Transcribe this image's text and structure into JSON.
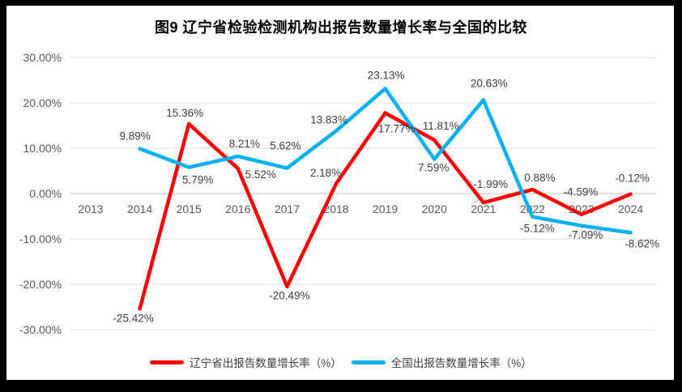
{
  "title": "图9  辽宁省检验检测机构出报告数量增长率与全国的比较",
  "chart_data": {
    "type": "line",
    "categories": [
      "2013",
      "2014",
      "2015",
      "2016",
      "2017",
      "2018",
      "2019",
      "2020",
      "2021",
      "2022",
      "2023",
      "2024"
    ],
    "series": [
      {
        "name": "辽宁省出报告数量增长率（%）",
        "color": "#FF0000",
        "values": [
          null,
          -25.42,
          15.36,
          5.52,
          -20.49,
          2.18,
          17.77,
          11.81,
          -1.99,
          0.88,
          -4.59,
          -0.12
        ],
        "labels": [
          null,
          "-25.42%",
          "15.36%",
          "5.52%",
          "-20.49%",
          "2.18%",
          "17.77%",
          "11.81%",
          "-1.99%",
          "0.88%",
          "-4.59%",
          "-0.12%"
        ]
      },
      {
        "name": "全国出报告数量增长率（%）",
        "color": "#00B0F0",
        "values": [
          null,
          9.89,
          5.79,
          8.21,
          5.62,
          13.83,
          23.13,
          7.59,
          20.63,
          -5.12,
          -7.09,
          -8.62
        ],
        "labels": [
          null,
          "9.89%",
          "5.79%",
          "8.21%",
          "5.62%",
          "13.83%",
          "23.13%",
          "7.59%",
          "20.63%",
          "-5.12%",
          "-7.09%",
          "-8.62%"
        ]
      }
    ],
    "title": "图9  辽宁省检验检测机构出报告数量增长率与全国的比较",
    "xlabel": "",
    "ylabel": "",
    "ylim": [
      -30,
      30
    ],
    "ytick_step": 10,
    "yticks": [
      "30.00%",
      "20.00%",
      "10.00%",
      "0.00%",
      "-10.00%",
      "-20.00%",
      "-30.00%"
    ],
    "grid": true,
    "legend_position": "bottom"
  },
  "legend": {
    "items": [
      {
        "label": "辽宁省出报告数量增长率（%）",
        "color": "#FF0000"
      },
      {
        "label": "全国出报告数量增长率（%）",
        "color": "#00B0F0"
      }
    ]
  },
  "colors": {
    "liaoning_line": "#FF0000",
    "national_line": "#00B0F0",
    "gridline": "#D9D9D9",
    "zero_line": "#BFBFBF",
    "axis_text": "#595959",
    "data_label_text": "#3F3F3F",
    "frame": "#000000",
    "background": "#FFFFFF"
  }
}
